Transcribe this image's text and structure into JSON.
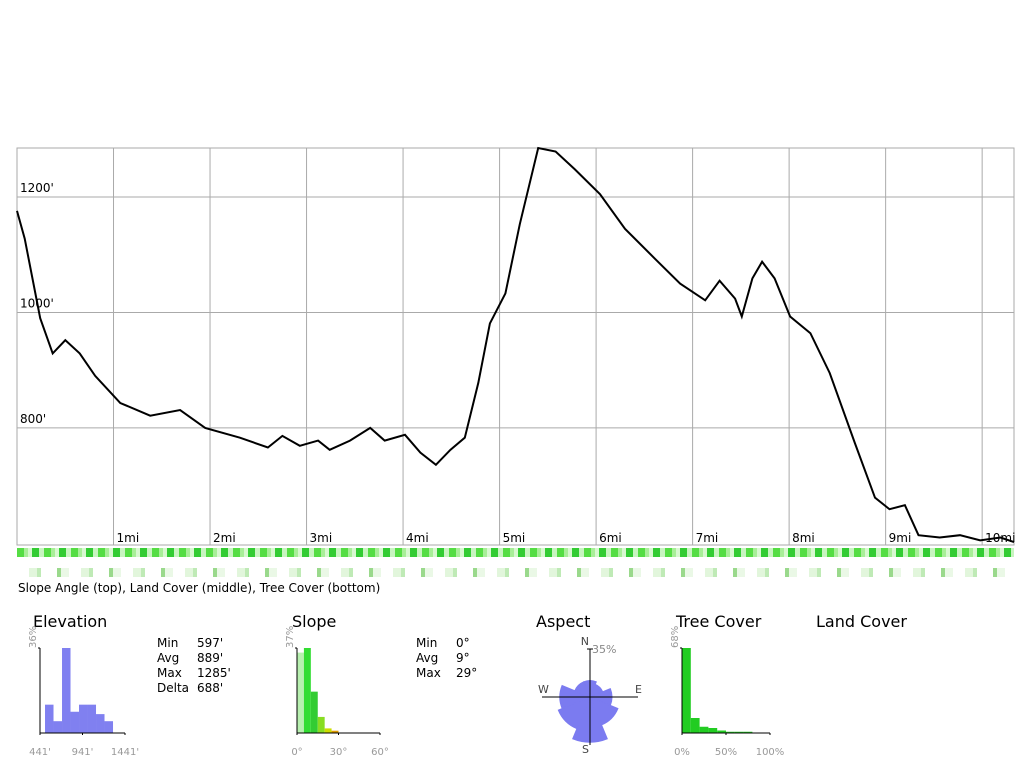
{
  "chart_data": [
    {
      "type": "line",
      "caption": "Slope Angle (top), Land Cover (middle), Tree Cover (bottom)",
      "x": [
        0,
        0.08,
        0.24,
        0.37,
        0.5,
        0.65,
        0.81,
        1.07,
        1.38,
        1.69,
        1.95,
        2.31,
        2.6,
        2.75,
        2.93,
        3.12,
        3.24,
        3.45,
        3.66,
        3.81,
        4.02,
        4.18,
        4.34,
        4.49,
        4.64,
        4.78,
        4.9,
        5.06,
        5.21,
        5.4,
        5.58,
        5.78,
        6.04,
        6.3,
        6.61,
        6.87,
        7.13,
        7.28,
        7.44,
        7.51,
        7.62,
        7.72,
        7.85,
        8.01,
        8.22,
        8.42,
        8.68,
        8.89,
        9.04,
        9.2,
        9.34,
        9.56,
        9.77,
        9.98,
        10.19,
        10.33
      ],
      "values": [
        1176,
        1128,
        990,
        929,
        952,
        929,
        890,
        843,
        821,
        831,
        800,
        783,
        766,
        786,
        769,
        778,
        762,
        778,
        800,
        778,
        788,
        757,
        736,
        762,
        783,
        878,
        981,
        1033,
        1153,
        1285,
        1279,
        1248,
        1205,
        1145,
        1093,
        1050,
        1021,
        1055,
        1024,
        993,
        1059,
        1088,
        1059,
        993,
        964,
        895,
        774,
        679,
        659,
        666,
        614,
        610,
        614,
        605,
        610,
        602
      ],
      "color": "#000000",
      "xlim": [
        0,
        10.33
      ],
      "ylim": [
        597,
        1285
      ],
      "xticks": [
        {
          "value": 1,
          "label": "1mi"
        },
        {
          "value": 2,
          "label": "2mi"
        },
        {
          "value": 3,
          "label": "3mi"
        },
        {
          "value": 4,
          "label": "4mi"
        },
        {
          "value": 5,
          "label": "5mi"
        },
        {
          "value": 6,
          "label": "6mi"
        },
        {
          "value": 7,
          "label": "7mi"
        },
        {
          "value": 8,
          "label": "8mi"
        },
        {
          "value": 9,
          "label": "9mi"
        },
        {
          "value": 10,
          "label": "10mi"
        }
      ],
      "yticks": [
        {
          "value": 800,
          "label": "800'"
        },
        {
          "value": 1000,
          "label": "1000'"
        },
        {
          "value": 1200,
          "label": "1200'"
        }
      ],
      "grid": true
    },
    {
      "type": "histogram",
      "title": "Elevation",
      "bins": [
        500,
        600,
        700,
        800,
        900,
        1000,
        1100,
        1200,
        1300
      ],
      "values": [
        12,
        5,
        36,
        9,
        12,
        12,
        8,
        5
      ],
      "color": "#8080f0",
      "xlim": [
        441,
        1441
      ],
      "xticks": [
        {
          "value": 441,
          "label": "441'"
        },
        {
          "value": 941,
          "label": "941'"
        },
        {
          "value": 1441,
          "label": "1441'"
        }
      ],
      "ylim": [
        0,
        36
      ],
      "yticks": [
        {
          "value": 36,
          "label": "36%"
        }
      ],
      "stats": [
        [
          "Min",
          "597'"
        ],
        [
          "Avg",
          "889'"
        ],
        [
          "Max",
          "1285'"
        ],
        [
          "Delta",
          "688'"
        ]
      ]
    },
    {
      "type": "histogram",
      "title": "Slope",
      "bins": [
        0,
        5,
        10,
        15,
        20,
        25,
        30
      ],
      "values": [
        35,
        37,
        18,
        7,
        2,
        1
      ],
      "colors": [
        "#b8f0b0",
        "#33dd33",
        "#33cc33",
        "#88dd22",
        "#ccdd00",
        "#dd9900"
      ],
      "xlim": [
        0,
        60
      ],
      "xticks": [
        {
          "value": 0,
          "label": "0°"
        },
        {
          "value": 30,
          "label": "30°"
        },
        {
          "value": 60,
          "label": "60°"
        }
      ],
      "ylim": [
        0,
        37
      ],
      "yticks": [
        {
          "value": 37,
          "label": "37%"
        }
      ],
      "stats": [
        [
          "Min",
          "0°"
        ],
        [
          "Avg",
          "9°"
        ],
        [
          "Max",
          "29°"
        ]
      ]
    },
    {
      "type": "rose",
      "title": "Aspect",
      "categories": [
        "N",
        null,
        "E",
        null,
        "S",
        null,
        "W",
        null
      ],
      "values": [
        12,
        10,
        16,
        22,
        33,
        25,
        22,
        12
      ],
      "color": "#7b7bf0",
      "rlim": [
        0,
        35
      ],
      "rticks": [
        {
          "value": 35,
          "label": "35%"
        }
      ]
    },
    {
      "type": "histogram",
      "title": "Tree Cover",
      "bins": [
        0,
        10,
        20,
        30,
        40,
        50,
        60,
        70,
        80,
        90,
        100
      ],
      "values": [
        68,
        12,
        5,
        4,
        2,
        1,
        1,
        1,
        0,
        0
      ],
      "color": "#22cc22",
      "xlim": [
        0,
        100
      ],
      "xticks": [
        {
          "value": 0,
          "label": "0%"
        },
        {
          "value": 50,
          "label": "50%"
        },
        {
          "value": 100,
          "label": "100%"
        }
      ],
      "ylim": [
        0,
        68
      ],
      "yticks": [
        {
          "value": 68,
          "label": "68%"
        }
      ]
    },
    {
      "title": "Land Cover"
    }
  ]
}
